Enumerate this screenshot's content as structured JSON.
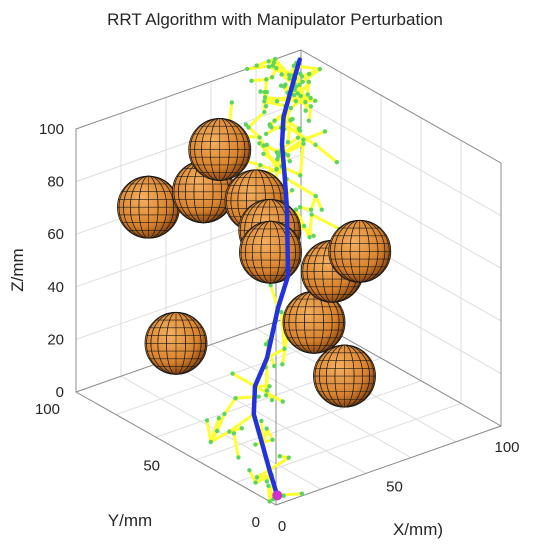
{
  "chart_data": {
    "type": "scatter",
    "subtype": "3d-scene",
    "title": "RRT Algorithm with Manipulator Perturbation",
    "xlabel": "X/mm)",
    "ylabel": "Y/mm",
    "zlabel": "Z/mm",
    "xlim": [
      0,
      100
    ],
    "ylim": [
      0,
      100
    ],
    "zlim": [
      0,
      100
    ],
    "x_ticks": [
      "0",
      "50",
      "100"
    ],
    "y_ticks": [
      "0",
      "50",
      "100"
    ],
    "z_ticks": [
      "0",
      "20",
      "40",
      "60",
      "80",
      "100"
    ],
    "grid": true,
    "colors": {
      "tree": "#ffff33",
      "tree_nodes": "#5cd65c",
      "path": "#2233dd",
      "start": "#cc33cc",
      "obstacle": "#d9822b",
      "obstacle_mesh": "#1a1a1a",
      "axes": "#262626",
      "grid": "#dddddd"
    },
    "start_point": [
      5,
      5,
      0
    ],
    "goal_point": [
      95,
      95,
      100
    ],
    "obstacles": [
      {
        "center": [
          10,
          75,
          78
        ],
        "radius": 10
      },
      {
        "center": [
          30,
          70,
          80
        ],
        "radius": 10
      },
      {
        "center": [
          55,
          90,
          80
        ],
        "radius": 10
      },
      {
        "center": [
          40,
          55,
          80
        ],
        "radius": 10
      },
      {
        "center": [
          42,
          50,
          62
        ],
        "radius": 10
      },
      {
        "center": [
          55,
          65,
          60
        ],
        "radius": 10
      },
      {
        "center": [
          65,
          45,
          50
        ],
        "radius": 10
      },
      {
        "center": [
          48,
          35,
          40
        ],
        "radius": 10
      },
      {
        "center": [
          0,
          50,
          40
        ],
        "radius": 10
      },
      {
        "center": [
          95,
          65,
          40
        ],
        "radius": 10
      },
      {
        "center": [
          66,
          40,
          12
        ],
        "radius": 10
      }
    ],
    "path": [
      [
        5,
        5,
        0
      ],
      [
        8,
        12,
        5
      ],
      [
        12,
        20,
        10
      ],
      [
        15,
        28,
        18
      ],
      [
        20,
        33,
        25
      ],
      [
        28,
        36,
        32
      ],
      [
        34,
        40,
        38
      ],
      [
        40,
        44,
        44
      ],
      [
        48,
        48,
        52
      ],
      [
        54,
        55,
        60
      ],
      [
        60,
        62,
        68
      ],
      [
        66,
        70,
        76
      ],
      [
        72,
        78,
        82
      ],
      [
        78,
        84,
        88
      ],
      [
        84,
        88,
        92
      ],
      [
        90,
        92,
        96
      ],
      [
        95,
        95,
        100
      ]
    ],
    "tree_edges_approx_count": 180
  }
}
